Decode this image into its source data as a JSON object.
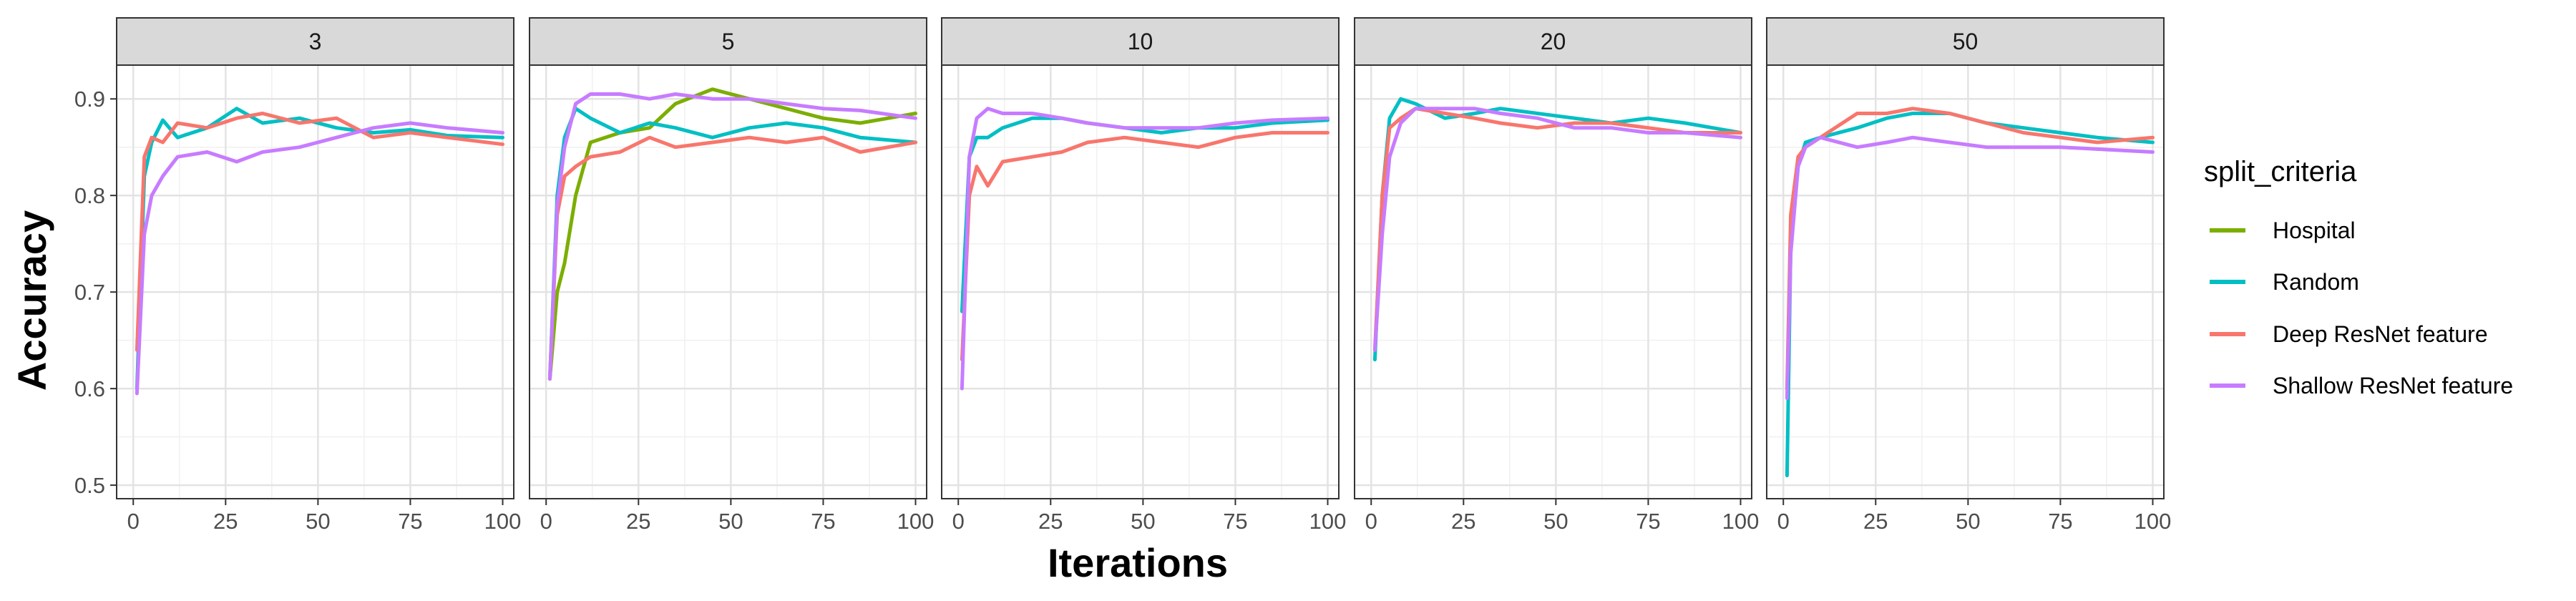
{
  "chart_data": {
    "type": "line",
    "facets": [
      "3",
      "5",
      "10",
      "20",
      "50"
    ],
    "xlabel": "Iterations",
    "ylabel": "Accuracy",
    "xlim": [
      0,
      100
    ],
    "ylim": [
      0.5,
      0.9
    ],
    "x_ticks": [
      "0",
      "25",
      "50",
      "75",
      "100"
    ],
    "y_ticks": [
      "0.5",
      "0.6",
      "0.7",
      "0.8",
      "0.9"
    ],
    "grid": true,
    "legend": {
      "title": "split_criteria",
      "position": "right",
      "entries": [
        {
          "name": "Hospital",
          "color": "#7CAE00"
        },
        {
          "name": "Random",
          "color": "#00BFC4"
        },
        {
          "name": "Deep ResNet feature",
          "color": "#F8766D"
        },
        {
          "name": "Shallow ResNet feature",
          "color": "#C77CFF"
        }
      ]
    },
    "panels": [
      {
        "facet": "3",
        "series": [
          {
            "name": "Random",
            "x": [
              1,
              3,
              5,
              8,
              12,
              20,
              28,
              35,
              45,
              55,
              65,
              75,
              85,
              100
            ],
            "y": [
              0.6,
              0.82,
              0.855,
              0.878,
              0.86,
              0.87,
              0.89,
              0.875,
              0.88,
              0.87,
              0.865,
              0.868,
              0.862,
              0.86
            ]
          },
          {
            "name": "Deep ResNet feature",
            "x": [
              1,
              3,
              5,
              8,
              12,
              20,
              28,
              35,
              45,
              55,
              65,
              75,
              85,
              100
            ],
            "y": [
              0.64,
              0.84,
              0.86,
              0.855,
              0.875,
              0.87,
              0.88,
              0.885,
              0.875,
              0.88,
              0.86,
              0.865,
              0.86,
              0.853
            ]
          },
          {
            "name": "Shallow ResNet feature",
            "x": [
              1,
              3,
              5,
              8,
              12,
              20,
              28,
              35,
              45,
              55,
              65,
              75,
              85,
              100
            ],
            "y": [
              0.595,
              0.76,
              0.8,
              0.82,
              0.84,
              0.845,
              0.835,
              0.845,
              0.85,
              0.86,
              0.87,
              0.875,
              0.87,
              0.865
            ]
          }
        ]
      },
      {
        "facet": "5",
        "series": [
          {
            "name": "Hospital",
            "x": [
              1,
              3,
              5,
              8,
              12,
              20,
              28,
              35,
              45,
              55,
              65,
              75,
              85,
              100
            ],
            "y": [
              0.61,
              0.7,
              0.73,
              0.8,
              0.855,
              0.865,
              0.87,
              0.895,
              0.91,
              0.9,
              0.89,
              0.88,
              0.875,
              0.885
            ]
          },
          {
            "name": "Random",
            "x": [
              1,
              3,
              5,
              8,
              12,
              20,
              28,
              35,
              45,
              55,
              65,
              75,
              85,
              100
            ],
            "y": [
              0.61,
              0.8,
              0.86,
              0.89,
              0.88,
              0.865,
              0.875,
              0.87,
              0.86,
              0.87,
              0.875,
              0.87,
              0.86,
              0.855
            ]
          },
          {
            "name": "Deep ResNet feature",
            "x": [
              1,
              3,
              5,
              8,
              12,
              20,
              28,
              35,
              45,
              55,
              65,
              75,
              85,
              100
            ],
            "y": [
              0.61,
              0.78,
              0.82,
              0.83,
              0.84,
              0.845,
              0.86,
              0.85,
              0.855,
              0.86,
              0.855,
              0.86,
              0.845,
              0.855
            ]
          },
          {
            "name": "Shallow ResNet feature",
            "x": [
              1,
              3,
              5,
              8,
              12,
              20,
              28,
              35,
              45,
              55,
              65,
              75,
              85,
              100
            ],
            "y": [
              0.61,
              0.79,
              0.85,
              0.895,
              0.905,
              0.905,
              0.9,
              0.905,
              0.9,
              0.9,
              0.895,
              0.89,
              0.888,
              0.88
            ]
          }
        ]
      },
      {
        "facet": "10",
        "series": [
          {
            "name": "Random",
            "x": [
              1,
              3,
              5,
              8,
              12,
              20,
              28,
              35,
              45,
              55,
              65,
              75,
              85,
              100
            ],
            "y": [
              0.68,
              0.84,
              0.86,
              0.86,
              0.87,
              0.88,
              0.88,
              0.875,
              0.87,
              0.865,
              0.87,
              0.87,
              0.875,
              0.878
            ]
          },
          {
            "name": "Deep ResNet feature",
            "x": [
              1,
              3,
              5,
              8,
              12,
              20,
              28,
              35,
              45,
              55,
              65,
              75,
              85,
              100
            ],
            "y": [
              0.63,
              0.8,
              0.83,
              0.81,
              0.835,
              0.84,
              0.845,
              0.855,
              0.86,
              0.855,
              0.85,
              0.86,
              0.865,
              0.865
            ]
          },
          {
            "name": "Shallow ResNet feature",
            "x": [
              1,
              3,
              5,
              8,
              12,
              20,
              28,
              35,
              45,
              55,
              65,
              75,
              85,
              100
            ],
            "y": [
              0.6,
              0.84,
              0.88,
              0.89,
              0.885,
              0.885,
              0.88,
              0.875,
              0.87,
              0.87,
              0.87,
              0.875,
              0.878,
              0.88
            ]
          }
        ]
      },
      {
        "facet": "20",
        "series": [
          {
            "name": "Random",
            "x": [
              1,
              3,
              5,
              8,
              12,
              20,
              28,
              35,
              45,
              55,
              65,
              75,
              85,
              100
            ],
            "y": [
              0.63,
              0.8,
              0.88,
              0.9,
              0.895,
              0.88,
              0.885,
              0.89,
              0.885,
              0.88,
              0.875,
              0.88,
              0.875,
              0.865
            ]
          },
          {
            "name": "Deep ResNet feature",
            "x": [
              1,
              3,
              5,
              8,
              12,
              20,
              28,
              35,
              45,
              55,
              65,
              75,
              85,
              100
            ],
            "y": [
              0.64,
              0.8,
              0.87,
              0.88,
              0.89,
              0.885,
              0.88,
              0.875,
              0.87,
              0.875,
              0.875,
              0.87,
              0.865,
              0.865
            ]
          },
          {
            "name": "Shallow ResNet feature",
            "x": [
              1,
              3,
              5,
              8,
              12,
              20,
              28,
              35,
              45,
              55,
              65,
              75,
              85,
              100
            ],
            "y": [
              0.64,
              0.76,
              0.84,
              0.875,
              0.89,
              0.89,
              0.89,
              0.885,
              0.88,
              0.87,
              0.87,
              0.865,
              0.865,
              0.86
            ]
          }
        ]
      },
      {
        "facet": "50",
        "series": [
          {
            "name": "Random",
            "x": [
              1,
              2,
              4,
              6,
              10,
              20,
              28,
              35,
              45,
              55,
              65,
              75,
              85,
              100
            ],
            "y": [
              0.51,
              0.75,
              0.83,
              0.855,
              0.86,
              0.87,
              0.88,
              0.885,
              0.885,
              0.875,
              0.87,
              0.865,
              0.86,
              0.855
            ]
          },
          {
            "name": "Deep ResNet feature",
            "x": [
              1,
              2,
              4,
              6,
              10,
              20,
              28,
              35,
              45,
              55,
              65,
              75,
              85,
              100
            ],
            "y": [
              0.6,
              0.78,
              0.84,
              0.85,
              0.86,
              0.885,
              0.885,
              0.89,
              0.885,
              0.875,
              0.865,
              0.86,
              0.855,
              0.86
            ]
          },
          {
            "name": "Shallow ResNet feature",
            "x": [
              1,
              2,
              4,
              6,
              10,
              20,
              28,
              35,
              45,
              55,
              65,
              75,
              85,
              100
            ],
            "y": [
              0.59,
              0.74,
              0.83,
              0.85,
              0.86,
              0.85,
              0.855,
              0.86,
              0.855,
              0.85,
              0.85,
              0.85,
              0.848,
              0.845
            ]
          }
        ]
      }
    ]
  }
}
